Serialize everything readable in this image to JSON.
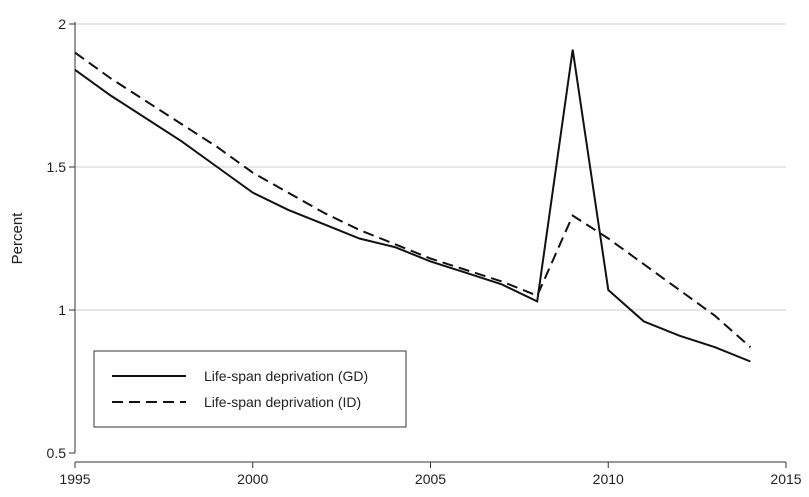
{
  "chart_data": {
    "type": "line",
    "title": "",
    "xlabel": "",
    "ylabel": "Percent",
    "xlim": [
      1995,
      2015
    ],
    "ylim": [
      0.5,
      2
    ],
    "xticks": [
      1995,
      2000,
      2005,
      2010,
      2015
    ],
    "yticks": [
      0.5,
      1,
      1.5,
      2
    ],
    "ytick_labels": [
      "0.5",
      "1",
      "1.5",
      "2"
    ],
    "grid": "horizontal",
    "legend_position": "bottom-left",
    "series": [
      {
        "name": "Life-span deprivation (GD)",
        "style": "solid",
        "color": "#111111",
        "x": [
          1995,
          1996,
          1997,
          1998,
          1999,
          2000,
          2001,
          2002,
          2003,
          2004,
          2005,
          2006,
          2007,
          2008,
          2009,
          2010,
          2011,
          2012,
          2013,
          2014
        ],
        "y": [
          1.84,
          1.75,
          1.67,
          1.59,
          1.5,
          1.41,
          1.35,
          1.3,
          1.25,
          1.22,
          1.17,
          1.13,
          1.09,
          1.03,
          1.91,
          1.07,
          0.96,
          0.91,
          0.87,
          0.82
        ]
      },
      {
        "name": "Life-span deprivation (ID)",
        "style": "dashed",
        "color": "#111111",
        "x": [
          1995,
          1996,
          1997,
          1998,
          1999,
          2000,
          2001,
          2002,
          2003,
          2004,
          2005,
          2006,
          2007,
          2008,
          2009,
          2010,
          2011,
          2012,
          2013,
          2014
        ],
        "y": [
          1.9,
          1.81,
          1.73,
          1.65,
          1.57,
          1.48,
          1.41,
          1.34,
          1.28,
          1.23,
          1.18,
          1.14,
          1.1,
          1.05,
          1.33,
          1.25,
          1.16,
          1.07,
          0.98,
          0.87
        ]
      }
    ]
  }
}
